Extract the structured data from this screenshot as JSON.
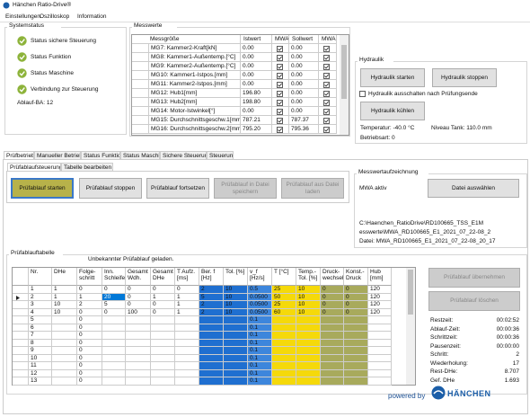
{
  "window": {
    "title": "Hänchen Ratio-Drive®"
  },
  "menu": [
    "Einstellungen",
    "Oszilloskop",
    "Information"
  ],
  "systemstatus": {
    "title": "Systemstatus",
    "items": [
      "Status sichere Steuerung",
      "Status Funktion",
      "Status Maschine",
      "Verbindung zur Steuerung"
    ],
    "ablauf": "Ablauf-BA: 12"
  },
  "messwerte": {
    "title": "Messwerte",
    "headers": [
      "Messgröße",
      "Istwert",
      "MWA",
      "Sollwert",
      "MWA"
    ],
    "rows": [
      [
        "MG7: Kammer2-Kraft[kN]",
        "0.00",
        "0.00"
      ],
      [
        "MG8: Kammer1-Außentemp.[°C]",
        "0.00",
        "0.00"
      ],
      [
        "MG9: Kammer2-Außentemp.[°C]",
        "0.00",
        "0.00"
      ],
      [
        "MG10: Kammer1-Istpos.[mm]",
        "0.00",
        "0.00"
      ],
      [
        "MG11: Kammer2-Istpos.[mm]",
        "0.00",
        "0.00"
      ],
      [
        "MG12: Hub1[mm]",
        "196.80",
        "0.00"
      ],
      [
        "MG13: Hub2[mm]",
        "198.80",
        "0.00"
      ],
      [
        "MG14: Motor-Istwinkel[°]",
        "0.00",
        "0.00"
      ],
      [
        "MG15: Durchschnittsgeschw.1[mm",
        "787.21",
        "787.37"
      ],
      [
        "MG16: Durchschnittsgeschw.2[mm",
        "795.20",
        "795.36"
      ]
    ]
  },
  "hydraulik": {
    "title": "Hydraulik",
    "start": "Hydraulik starten",
    "stop": "Hydraulik stoppen",
    "option": "Hydraulik ausschalten nach Prüfungsende",
    "cool": "Hydraulik kühlen",
    "temperature": "Temperatur: -40.0 °C",
    "tank": "Niveau Tank: 110.0 mm",
    "mode": "Betriebsart: 0"
  },
  "tabs": [
    "Prüfbetrieb",
    "Manueller Betrieb",
    "Status Funktion",
    "Status Maschine",
    "Sichere Steuerung",
    "Steuerung"
  ],
  "subtabs": [
    "Prüfablaufsteuerung",
    "Tabelle bearbeiten"
  ],
  "controls": {
    "buttons": [
      "Prüfablauf starten",
      "Prüfablauf stoppen",
      "Prüfablauf fortsetzen",
      "Prüfablauf in Datei speichern",
      "Prüfablauf aus Datei laden"
    ]
  },
  "recording": {
    "title": "Messwertaufzeichnung",
    "status": "MWA aktiv",
    "button": "Datei auswählen",
    "path": [
      "C:\\Haenchen_RatioDrive\\RD100665_TSS_E1M",
      "esswerte\\MWA_RD100665_E1_2021_07_22-08_2",
      "Datei: MWA_RD100665_E1_2021_07_22-08_20_17"
    ]
  },
  "table": {
    "title": "Prüfablauftabelle",
    "message": "Unbekannter Prüfablauf geladen.",
    "headers": [
      "Nr.",
      "DHe",
      "Folge-schritt",
      "Inn. Schleifer",
      "Gesamt Wdh.",
      "Gesamt DHe",
      "T Aufz. [ms]",
      "Ber. f [Hz]",
      "Tol. [%]",
      "v_f [Hz/s]",
      "T [°C]",
      "Temp.-Tol. [%]",
      "Druck-wechsel",
      "Konst.-Druck",
      "Hub [mm]"
    ],
    "rows": [
      [
        "1",
        "1",
        "0",
        "0",
        "0",
        "0",
        "0",
        "2",
        "10",
        "0.5",
        "25",
        "10",
        "0",
        "0",
        "120"
      ],
      [
        "2",
        "1",
        "1",
        "20",
        "0",
        "1",
        "1",
        "5",
        "10",
        "0.0500",
        "50",
        "10",
        "0",
        "0",
        "120"
      ],
      [
        "3",
        "10",
        "2",
        "5",
        "0",
        "0",
        "1",
        "2",
        "10",
        "0.0500",
        "25",
        "10",
        "0",
        "0",
        "120"
      ],
      [
        "4",
        "10",
        "0",
        "0",
        "100",
        "0",
        "1",
        "2",
        "10",
        "0.0500",
        "60",
        "10",
        "0",
        "0",
        "120"
      ],
      [
        "5",
        "",
        "0",
        "",
        "",
        "",
        "",
        "",
        "",
        "0.1",
        "",
        "",
        "",
        "",
        ""
      ],
      [
        "6",
        "",
        "0",
        "",
        "",
        "",
        "",
        "",
        "",
        "0.1",
        "",
        "",
        "",
        "",
        ""
      ],
      [
        "7",
        "",
        "0",
        "",
        "",
        "",
        "",
        "",
        "",
        "0.1",
        "",
        "",
        "",
        "",
        ""
      ],
      [
        "8",
        "",
        "0",
        "",
        "",
        "",
        "",
        "",
        "",
        "0.1",
        "",
        "",
        "",
        "",
        ""
      ],
      [
        "9",
        "",
        "0",
        "",
        "",
        "",
        "",
        "",
        "",
        "0.1",
        "",
        "",
        "",
        "",
        ""
      ],
      [
        "10",
        "",
        "0",
        "",
        "",
        "",
        "",
        "",
        "",
        "0.1",
        "",
        "",
        "",
        "",
        ""
      ],
      [
        "11",
        "",
        "0",
        "",
        "",
        "",
        "",
        "",
        "",
        "0.1",
        "",
        "",
        "",
        "",
        ""
      ],
      [
        "12",
        "",
        "0",
        "",
        "",
        "",
        "",
        "",
        "",
        "0.1",
        "",
        "",
        "",
        "",
        ""
      ],
      [
        "13",
        "",
        "0",
        "",
        "",
        "",
        "",
        "",
        "",
        "0.1",
        "",
        "",
        "",
        "",
        ""
      ]
    ]
  },
  "side": {
    "buttons": [
      "Prüfablauf übernehmen",
      "Prüfablauf löschen"
    ],
    "stats": [
      [
        "Restzeit:",
        "00:02:52"
      ],
      [
        "Ablauf-Zeit:",
        "00:00:36"
      ],
      [
        "Schrittzeit:",
        "00:00:36"
      ],
      [
        "Pausenzeit:",
        "00:00:00"
      ],
      [
        "Schritt:",
        "2"
      ],
      [
        "Wiederholung:",
        "17"
      ],
      [
        "Rest-DHe:",
        "8.707"
      ],
      [
        "Gef. DHe",
        "1.693"
      ]
    ]
  },
  "footer": {
    "powered": "powered by",
    "brand": "HÄNCHEN"
  }
}
